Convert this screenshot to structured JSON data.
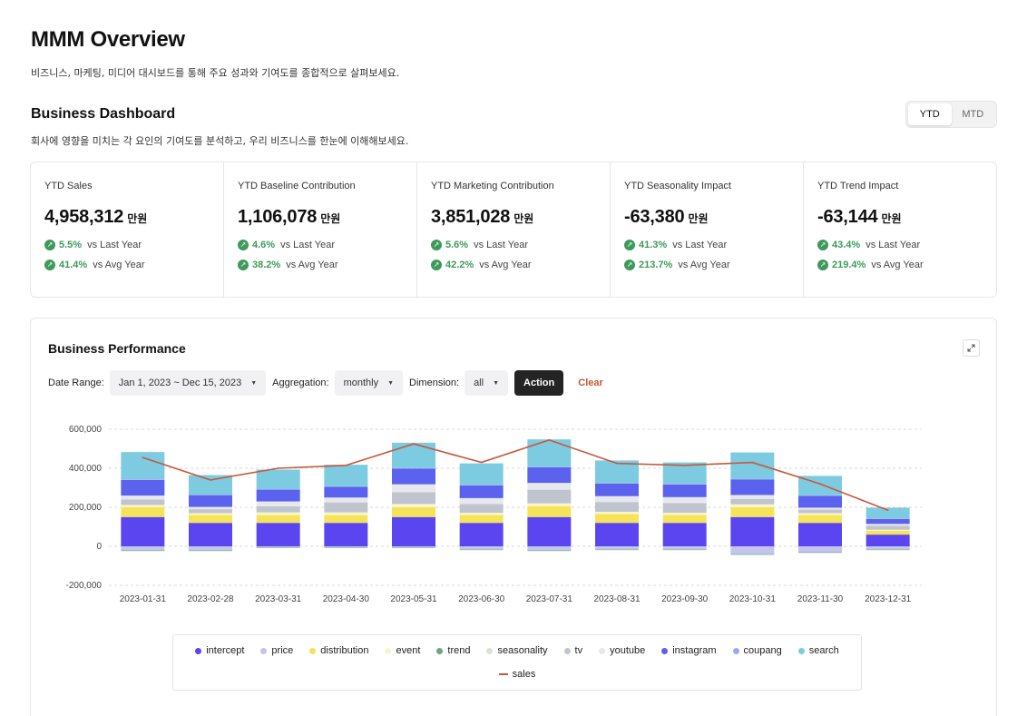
{
  "header": {
    "title": "MMM Overview",
    "subtitle": "비즈니스, 마케팅, 미디어 대시보드를 통해 주요 성과와 기여도를 종합적으로 살펴보세요."
  },
  "dashboard": {
    "title": "Business Dashboard",
    "subtitle": "회사에 영향을 미치는 각 요인의 기여도를 분석하고, 우리 비즈니스를 한눈에 이해해보세요.",
    "toggle": {
      "ytd": "YTD",
      "mtd": "MTD",
      "selected": "YTD"
    }
  },
  "kpis": [
    {
      "label": "YTD Sales",
      "value": "4,958,312",
      "unit": "만원",
      "d1_pct": "5.5%",
      "d1_label": "vs Last Year",
      "d2_pct": "41.4%",
      "d2_label": "vs Avg Year"
    },
    {
      "label": "YTD Baseline Contribution",
      "value": "1,106,078",
      "unit": "만원",
      "d1_pct": "4.6%",
      "d1_label": "vs Last Year",
      "d2_pct": "38.2%",
      "d2_label": "vs Avg Year"
    },
    {
      "label": "YTD Marketing Contribution",
      "value": "3,851,028",
      "unit": "만원",
      "d1_pct": "5.6%",
      "d1_label": "vs Last Year",
      "d2_pct": "42.2%",
      "d2_label": "vs Avg Year"
    },
    {
      "label": "YTD Seasonality Impact",
      "value": "-63,380",
      "unit": "만원",
      "d1_pct": "41.3%",
      "d1_label": "vs Last Year",
      "d2_pct": "213.7%",
      "d2_label": "vs Avg Year"
    },
    {
      "label": "YTD Trend Impact",
      "value": "-63,144",
      "unit": "만원",
      "d1_pct": "43.4%",
      "d1_label": "vs Last Year",
      "d2_pct": "219.4%",
      "d2_label": "vs Avg Year"
    }
  ],
  "performance": {
    "title": "Business Performance",
    "filters": {
      "date_label": "Date Range:",
      "date_value": "Jan 1, 2023 ~ Dec 15, 2023",
      "agg_label": "Aggregation:",
      "agg_value": "monthly",
      "dim_label": "Dimension:",
      "dim_value": "all",
      "action": "Action",
      "clear": "Clear"
    }
  },
  "colors": {
    "intercept": "#5b45f0",
    "price": "#c5c3ef",
    "distribution": "#f5e35a",
    "event": "#fbf5c8",
    "trend": "#6aa57c",
    "seasonality": "#cfe6d4",
    "tv": "#c0c4cf",
    "youtube": "#e6e8ee",
    "instagram": "#5b63ee",
    "coupang": "#9aa8f0",
    "search": "#7dcbe0",
    "sales": "#c9573a"
  },
  "chart_data": {
    "type": "bar",
    "stacked": true,
    "title": "",
    "xlabel": "",
    "ylabel": "",
    "ylim": [
      -200000,
      600000
    ],
    "yticks": [
      -200000,
      0,
      200000,
      400000,
      600000
    ],
    "ytick_labels": [
      "-200,000",
      "0",
      "200,000",
      "400,000",
      "600,000"
    ],
    "grid": true,
    "legend_position": "bottom",
    "categories": [
      "2023-01-31",
      "2023-02-28",
      "2023-03-31",
      "2023-04-30",
      "2023-05-31",
      "2023-06-30",
      "2023-07-31",
      "2023-08-31",
      "2023-09-30",
      "2023-10-31",
      "2023-11-30",
      "2023-12-31"
    ],
    "series": [
      {
        "name": "intercept",
        "values": [
          150000,
          120000,
          120000,
          120000,
          150000,
          120000,
          150000,
          120000,
          120000,
          150000,
          120000,
          60000
        ]
      },
      {
        "name": "price",
        "values": [
          -20000,
          -20000,
          -5000,
          -5000,
          -5000,
          -15000,
          -20000,
          -15000,
          -15000,
          -40000,
          -30000,
          -15000
        ]
      },
      {
        "name": "distribution",
        "values": [
          50000,
          40000,
          40000,
          40000,
          50000,
          40000,
          55000,
          45000,
          40000,
          50000,
          40000,
          20000
        ]
      },
      {
        "name": "event",
        "values": [
          12000,
          10000,
          12000,
          12000,
          15000,
          12000,
          15000,
          12000,
          12000,
          15000,
          10000,
          5000
        ]
      },
      {
        "name": "trend",
        "values": [
          -3000,
          -3000,
          -3000,
          -3000,
          -3000,
          -3000,
          -3000,
          -3000,
          -3000,
          -3000,
          -3000,
          -3000
        ]
      },
      {
        "name": "seasonality",
        "values": [
          -3000,
          -3000,
          3000,
          3000,
          3000,
          -3000,
          -3000,
          -3000,
          -3000,
          -3000,
          -3000,
          -3000
        ]
      },
      {
        "name": "tv",
        "values": [
          28000,
          20000,
          30000,
          50000,
          60000,
          45000,
          70000,
          50000,
          50000,
          28000,
          18000,
          20000
        ]
      },
      {
        "name": "youtube",
        "values": [
          20000,
          12000,
          25000,
          25000,
          40000,
          30000,
          35000,
          30000,
          30000,
          20000,
          10000,
          10000
        ]
      },
      {
        "name": "instagram",
        "values": [
          80000,
          60000,
          60000,
          55000,
          80000,
          65000,
          80000,
          65000,
          65000,
          80000,
          60000,
          25000
        ]
      },
      {
        "name": "coupang",
        "values": [
          3000,
          3000,
          3000,
          3000,
          3000,
          3000,
          3000,
          3000,
          3000,
          3000,
          3000,
          3000
        ]
      },
      {
        "name": "search",
        "values": [
          140000,
          100000,
          100000,
          110000,
          130000,
          110000,
          140000,
          115000,
          110000,
          135000,
          100000,
          55000
        ]
      }
    ],
    "line": {
      "name": "sales",
      "values": [
        455000,
        340000,
        400000,
        415000,
        525000,
        430000,
        545000,
        425000,
        415000,
        430000,
        320000,
        185000
      ]
    }
  }
}
